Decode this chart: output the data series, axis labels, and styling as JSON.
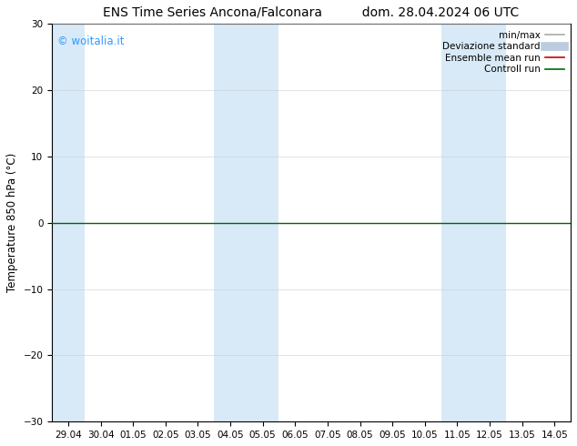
{
  "title_left": "ENS Time Series Ancona/Falconara",
  "title_right": "dom. 28.04.2024 06 UTC",
  "ylabel": "Temperature 850 hPa (°C)",
  "ylim": [
    -30,
    30
  ],
  "yticks": [
    -30,
    -20,
    -10,
    0,
    10,
    20,
    30
  ],
  "xticklabels": [
    "29.04",
    "30.04",
    "01.05",
    "02.05",
    "03.05",
    "04.05",
    "05.05",
    "06.05",
    "07.05",
    "08.05",
    "09.05",
    "10.05",
    "11.05",
    "12.05",
    "13.05",
    "14.05"
  ],
  "background_color": "#ffffff",
  "plot_bg_color": "#ffffff",
  "shaded_color": "#d8eaf7",
  "shaded_ranges": [
    [
      0.0,
      1.0
    ],
    [
      5.0,
      7.0
    ],
    [
      12.0,
      14.0
    ]
  ],
  "watermark": "© woitalia.it",
  "watermark_color": "#3399ff",
  "legend_items": [
    {
      "label": "min/max",
      "color": "#aaaaaa",
      "lw": 1.2,
      "style": "solid"
    },
    {
      "label": "Deviazione standard",
      "color": "#bbccdd",
      "lw": 7,
      "style": "solid"
    },
    {
      "label": "Ensemble mean run",
      "color": "#cc0000",
      "lw": 1.2,
      "style": "solid"
    },
    {
      "label": "Controll run",
      "color": "#006600",
      "lw": 1.2,
      "style": "solid"
    }
  ],
  "zero_line_color": "#006600",
  "zero_line_lw": 1.0,
  "grid_color": "#cccccc",
  "spine_color": "#000000",
  "title_fontsize": 10,
  "tick_fontsize": 7.5,
  "ylabel_fontsize": 8.5,
  "watermark_fontsize": 8.5,
  "legend_fontsize": 7.5
}
